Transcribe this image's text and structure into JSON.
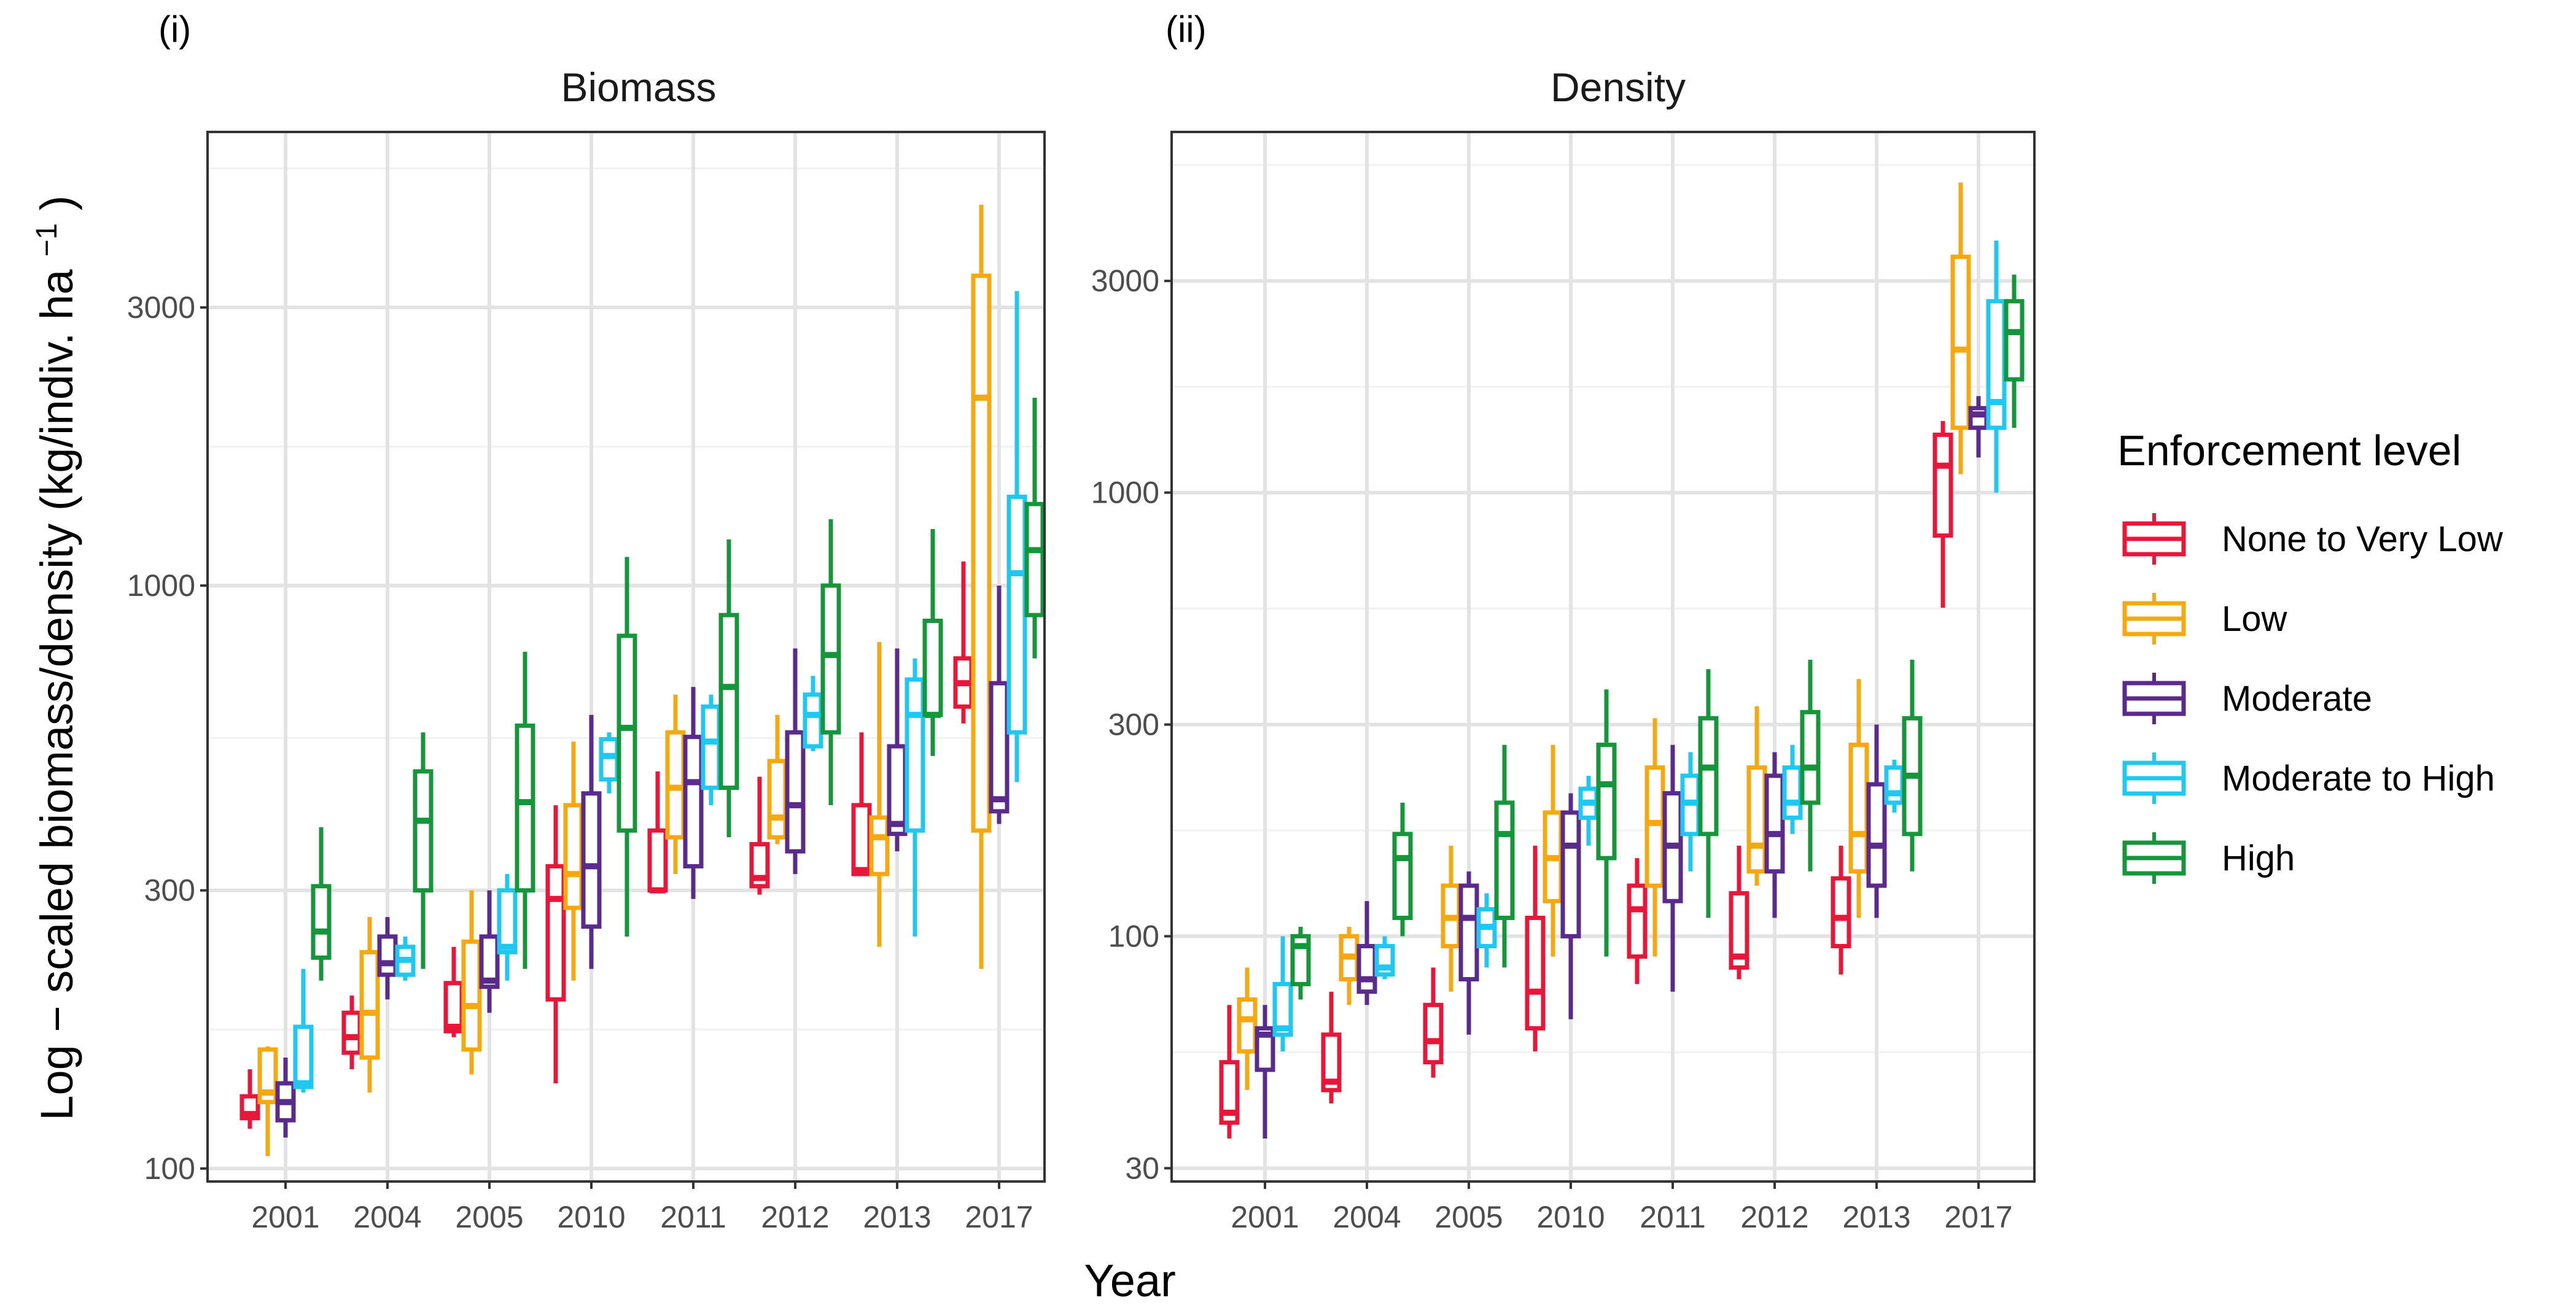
{
  "chart_data": {
    "type": "boxplot",
    "xlabel": "Year",
    "ylabel": "Log − scaled biomass/density  (kg/indiv.  ha",
    "ylabel_superscript": "−1",
    "ylabel_close": ")",
    "y_scale": "log",
    "categories": [
      "2001",
      "2004",
      "2005",
      "2010",
      "2011",
      "2012",
      "2013",
      "2017"
    ],
    "legend": {
      "title": "Enforcement level",
      "position": "right",
      "entries": [
        {
          "name": "None to Very Low",
          "color": "#e8173a"
        },
        {
          "name": "Low",
          "color": "#f5a80f"
        },
        {
          "name": "Moderate",
          "color": "#5a2a8c"
        },
        {
          "name": "Moderate to High",
          "color": "#1fc8f0"
        },
        {
          "name": "High",
          "color": "#16963b"
        }
      ]
    },
    "panels": [
      {
        "tag": "(i)",
        "title": "Biomass",
        "ylim": [
          95,
          6000
        ],
        "yticks": [
          100,
          300,
          1000,
          3000
        ],
        "ytick_labels": [
          "100",
          "300",
          "1000",
          "3000"
        ],
        "series": [
          {
            "name": "None to Very Low",
            "boxes": [
              [
                117,
                122,
                124,
                133,
                148
              ],
              [
                148,
                158,
                168,
                185,
                198
              ],
              [
                168,
                172,
                175,
                208,
                240
              ],
              [
                140,
                195,
                290,
                330,
                420
              ],
              [
                300,
                300,
                300,
                380,
                480
              ],
              [
                295,
                305,
                315,
                360,
                470
              ],
              [
                320,
                320,
                325,
                420,
                560
              ],
              [
                580,
                620,
                680,
                750,
                1100
              ]
            ]
          },
          {
            "name": "Low",
            "boxes": [
              [
                105,
                130,
                135,
                160,
                162
              ],
              [
                135,
                155,
                185,
                235,
                270
              ],
              [
                145,
                160,
                190,
                245,
                300
              ],
              [
                210,
                280,
                320,
                420,
                540
              ],
              [
                320,
                370,
                450,
                560,
                650
              ],
              [
                360,
                370,
                400,
                500,
                600
              ],
              [
                240,
                320,
                370,
                400,
                800
              ],
              [
                220,
                380,
                2100,
                3400,
                4500
              ]
            ]
          },
          {
            "name": "Moderate",
            "boxes": [
              [
                113,
                121,
                130,
                140,
                155
              ],
              [
                195,
                215,
                225,
                250,
                270
              ],
              [
                185,
                205,
                210,
                250,
                300
              ],
              [
                220,
                260,
                330,
                440,
                600
              ],
              [
                290,
                330,
                460,
                550,
                670
              ],
              [
                320,
                350,
                420,
                560,
                780
              ],
              [
                350,
                375,
                390,
                530,
                780
              ],
              [
                390,
                410,
                430,
                680,
                1000
              ]
            ]
          },
          {
            "name": "Moderate to High",
            "boxes": [
              [
                135,
                138,
                140,
                175,
                220
              ],
              [
                210,
                215,
                228,
                240,
                250
              ],
              [
                210,
                235,
                240,
                300,
                320
              ],
              [
                440,
                465,
                510,
                545,
                560
              ],
              [
                420,
                450,
                540,
                620,
                650
              ],
              [
                520,
                530,
                600,
                650,
                700
              ],
              [
                250,
                380,
                600,
                690,
                750
              ],
              [
                460,
                560,
                1050,
                1420,
                3200
              ]
            ]
          },
          {
            "name": "High",
            "boxes": [
              [
                210,
                230,
                255,
                305,
                385
              ],
              [
                220,
                300,
                395,
                480,
                560
              ],
              [
                220,
                300,
                425,
                575,
                770
              ],
              [
                250,
                380,
                570,
                820,
                1120
              ],
              [
                370,
                450,
                670,
                890,
                1200
              ],
              [
                420,
                560,
                760,
                1000,
                1300
              ],
              [
                510,
                600,
                600,
                870,
                1250
              ],
              [
                750,
                890,
                1150,
                1380,
                2100
              ]
            ]
          }
        ]
      },
      {
        "tag": "(ii)",
        "title": "Density",
        "ylim": [
          28,
          6500
        ],
        "yticks": [
          30,
          100,
          300,
          1000,
          3000
        ],
        "ytick_labels": [
          "30",
          "100",
          "300",
          "1000",
          "3000"
        ],
        "series": [
          {
            "name": "None to Very Low",
            "boxes": [
              [
                35,
                38,
                40,
                52,
                70
              ],
              [
                42,
                45,
                47,
                60,
                75
              ],
              [
                48,
                52,
                58,
                70,
                85
              ],
              [
                55,
                62,
                75,
                110,
                160
              ],
              [
                78,
                90,
                115,
                130,
                150
              ],
              [
                80,
                85,
                90,
                125,
                160
              ],
              [
                82,
                95,
                110,
                135,
                160
              ],
              [
                550,
                800,
                1150,
                1350,
                1450
              ]
            ]
          },
          {
            "name": "Low",
            "boxes": [
              [
                45,
                55,
                65,
                72,
                85
              ],
              [
                70,
                80,
                90,
                100,
                105
              ],
              [
                75,
                95,
                110,
                130,
                160
              ],
              [
                90,
                120,
                150,
                190,
                270
              ],
              [
                90,
                130,
                180,
                240,
                310
              ],
              [
                130,
                140,
                160,
                240,
                330
              ],
              [
                110,
                140,
                170,
                270,
                380
              ],
              [
                1100,
                1400,
                2100,
                3400,
                5000
              ]
            ]
          },
          {
            "name": "Moderate",
            "boxes": [
              [
                35,
                50,
                60,
                62,
                70
              ],
              [
                70,
                75,
                80,
                95,
                120
              ],
              [
                60,
                80,
                110,
                130,
                140
              ],
              [
                65,
                100,
                160,
                190,
                210
              ],
              [
                75,
                120,
                160,
                210,
                270
              ],
              [
                110,
                140,
                170,
                230,
                260
              ],
              [
                110,
                130,
                160,
                220,
                300
              ],
              [
                1200,
                1400,
                1500,
                1550,
                1650
              ]
            ]
          },
          {
            "name": "Moderate to High",
            "boxes": [
              [
                55,
                60,
                62,
                78,
                100
              ],
              [
                80,
                82,
                85,
                95,
                100
              ],
              [
                85,
                95,
                105,
                115,
                125
              ],
              [
                160,
                185,
                200,
                215,
                230
              ],
              [
                140,
                170,
                200,
                230,
                260
              ],
              [
                170,
                185,
                200,
                240,
                270
              ],
              [
                190,
                200,
                210,
                240,
                250
              ],
              [
                1000,
                1400,
                1600,
                2700,
                3700
              ]
            ]
          },
          {
            "name": "High",
            "boxes": [
              [
                72,
                78,
                95,
                100,
                105
              ],
              [
                100,
                110,
                150,
                170,
                200
              ],
              [
                85,
                110,
                170,
                200,
                270
              ],
              [
                90,
                150,
                220,
                270,
                360
              ],
              [
                110,
                170,
                240,
                310,
                400
              ],
              [
                140,
                200,
                240,
                320,
                420
              ],
              [
                140,
                170,
                230,
                310,
                420
              ],
              [
                1400,
                1800,
                2300,
                2700,
                3100
              ]
            ]
          }
        ]
      }
    ]
  }
}
